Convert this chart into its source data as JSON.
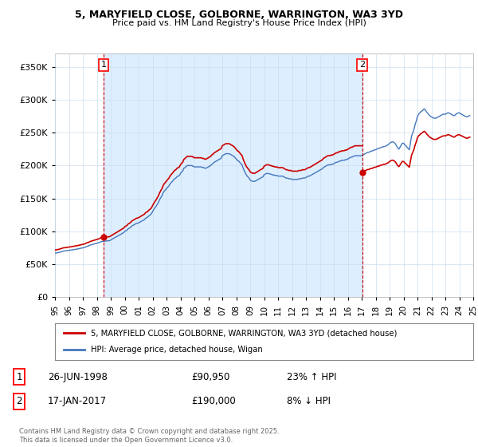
{
  "title1": "5, MARYFIELD CLOSE, GOLBORNE, WARRINGTON, WA3 3YD",
  "title2": "Price paid vs. HM Land Registry's House Price Index (HPI)",
  "legend_line1": "5, MARYFIELD CLOSE, GOLBORNE, WARRINGTON, WA3 3YD (detached house)",
  "legend_line2": "HPI: Average price, detached house, Wigan",
  "line1_color": "#cc0000",
  "line2_color": "#4477bb",
  "shade_color": "#ddeeff",
  "annotation1": {
    "num": "1",
    "date": "26-JUN-1998",
    "price": "£90,950",
    "pct": "23% ↑ HPI"
  },
  "annotation2": {
    "num": "2",
    "date": "17-JAN-2017",
    "price": "£190,000",
    "pct": "8% ↓ HPI"
  },
  "footer": "Contains HM Land Registry data © Crown copyright and database right 2025.\nThis data is licensed under the Open Government Licence v3.0.",
  "background_color": "#ffffff",
  "plot_bg_color": "#ffffff",
  "grid_color": "#ccddee",
  "ylim": [
    0,
    370000
  ],
  "yticks": [
    0,
    50000,
    100000,
    150000,
    200000,
    250000,
    300000,
    350000
  ],
  "hpi_data": {
    "dates": [
      1995.0,
      1995.08,
      1995.17,
      1995.25,
      1995.33,
      1995.42,
      1995.5,
      1995.58,
      1995.67,
      1995.75,
      1995.83,
      1995.92,
      1996.0,
      1996.08,
      1996.17,
      1996.25,
      1996.33,
      1996.42,
      1996.5,
      1996.58,
      1996.67,
      1996.75,
      1996.83,
      1996.92,
      1997.0,
      1997.08,
      1997.17,
      1997.25,
      1997.33,
      1997.42,
      1997.5,
      1997.58,
      1997.67,
      1997.75,
      1997.83,
      1997.92,
      1998.0,
      1998.08,
      1998.17,
      1998.25,
      1998.33,
      1998.42,
      1998.5,
      1998.58,
      1998.67,
      1998.75,
      1998.83,
      1998.92,
      1999.0,
      1999.08,
      1999.17,
      1999.25,
      1999.33,
      1999.42,
      1999.5,
      1999.58,
      1999.67,
      1999.75,
      1999.83,
      1999.92,
      2000.0,
      2000.08,
      2000.17,
      2000.25,
      2000.33,
      2000.42,
      2000.5,
      2000.58,
      2000.67,
      2000.75,
      2000.83,
      2000.92,
      2001.0,
      2001.08,
      2001.17,
      2001.25,
      2001.33,
      2001.42,
      2001.5,
      2001.58,
      2001.67,
      2001.75,
      2001.83,
      2001.92,
      2002.0,
      2002.08,
      2002.17,
      2002.25,
      2002.33,
      2002.42,
      2002.5,
      2002.58,
      2002.67,
      2002.75,
      2002.83,
      2002.92,
      2003.0,
      2003.08,
      2003.17,
      2003.25,
      2003.33,
      2003.42,
      2003.5,
      2003.58,
      2003.67,
      2003.75,
      2003.83,
      2003.92,
      2004.0,
      2004.08,
      2004.17,
      2004.25,
      2004.33,
      2004.42,
      2004.5,
      2004.58,
      2004.67,
      2004.75,
      2004.83,
      2004.92,
      2005.0,
      2005.08,
      2005.17,
      2005.25,
      2005.33,
      2005.42,
      2005.5,
      2005.58,
      2005.67,
      2005.75,
      2005.83,
      2005.92,
      2006.0,
      2006.08,
      2006.17,
      2006.25,
      2006.33,
      2006.42,
      2006.5,
      2006.58,
      2006.67,
      2006.75,
      2006.83,
      2006.92,
      2007.0,
      2007.08,
      2007.17,
      2007.25,
      2007.33,
      2007.42,
      2007.5,
      2007.58,
      2007.67,
      2007.75,
      2007.83,
      2007.92,
      2008.0,
      2008.08,
      2008.17,
      2008.25,
      2008.33,
      2008.42,
      2008.5,
      2008.58,
      2008.67,
      2008.75,
      2008.83,
      2008.92,
      2009.0,
      2009.08,
      2009.17,
      2009.25,
      2009.33,
      2009.42,
      2009.5,
      2009.58,
      2009.67,
      2009.75,
      2009.83,
      2009.92,
      2010.0,
      2010.08,
      2010.17,
      2010.25,
      2010.33,
      2010.42,
      2010.5,
      2010.58,
      2010.67,
      2010.75,
      2010.83,
      2010.92,
      2011.0,
      2011.08,
      2011.17,
      2011.25,
      2011.33,
      2011.42,
      2011.5,
      2011.58,
      2011.67,
      2011.75,
      2011.83,
      2011.92,
      2012.0,
      2012.08,
      2012.17,
      2012.25,
      2012.33,
      2012.42,
      2012.5,
      2012.58,
      2012.67,
      2012.75,
      2012.83,
      2012.92,
      2013.0,
      2013.08,
      2013.17,
      2013.25,
      2013.33,
      2013.42,
      2013.5,
      2013.58,
      2013.67,
      2013.75,
      2013.83,
      2013.92,
      2014.0,
      2014.08,
      2014.17,
      2014.25,
      2014.33,
      2014.42,
      2014.5,
      2014.58,
      2014.67,
      2014.75,
      2014.83,
      2014.92,
      2015.0,
      2015.08,
      2015.17,
      2015.25,
      2015.33,
      2015.42,
      2015.5,
      2015.58,
      2015.67,
      2015.75,
      2015.83,
      2015.92,
      2016.0,
      2016.08,
      2016.17,
      2016.25,
      2016.33,
      2016.42,
      2016.5,
      2016.58,
      2016.67,
      2016.75,
      2016.83,
      2016.92,
      2017.0,
      2017.08,
      2017.17,
      2017.25,
      2017.33,
      2017.42,
      2017.5,
      2017.58,
      2017.67,
      2017.75,
      2017.83,
      2017.92,
      2018.0,
      2018.08,
      2018.17,
      2018.25,
      2018.33,
      2018.42,
      2018.5,
      2018.58,
      2018.67,
      2018.75,
      2018.83,
      2018.92,
      2019.0,
      2019.08,
      2019.17,
      2019.25,
      2019.33,
      2019.42,
      2019.5,
      2019.58,
      2019.67,
      2019.75,
      2019.83,
      2019.92,
      2020.0,
      2020.08,
      2020.17,
      2020.25,
      2020.33,
      2020.42,
      2020.5,
      2020.58,
      2020.67,
      2020.75,
      2020.83,
      2020.92,
      2021.0,
      2021.08,
      2021.17,
      2021.25,
      2021.33,
      2021.42,
      2021.5,
      2021.58,
      2021.67,
      2021.75,
      2021.83,
      2021.92,
      2022.0,
      2022.08,
      2022.17,
      2022.25,
      2022.33,
      2022.42,
      2022.5,
      2022.58,
      2022.67,
      2022.75,
      2022.83,
      2022.92,
      2023.0,
      2023.08,
      2023.17,
      2023.25,
      2023.33,
      2023.42,
      2023.5,
      2023.58,
      2023.67,
      2023.75,
      2023.83,
      2023.92,
      2024.0,
      2024.08,
      2024.17,
      2024.25,
      2024.33,
      2024.42,
      2024.5,
      2024.58,
      2024.67,
      2024.75
    ],
    "values": [
      67000,
      67200,
      67500,
      68000,
      68300,
      69000,
      69500,
      70000,
      70200,
      70500,
      70800,
      71000,
      71200,
      71500,
      71800,
      72000,
      72300,
      72600,
      73000,
      73200,
      73500,
      74000,
      74300,
      74800,
      75000,
      75500,
      76000,
      77000,
      77500,
      78000,
      79000,
      79500,
      80000,
      80500,
      81000,
      81500,
      82000,
      82500,
      83000,
      84000,
      84500,
      85000,
      85000,
      85200,
      85500,
      85500,
      85800,
      86000,
      87000,
      88000,
      89000,
      90000,
      91000,
      92000,
      93000,
      94000,
      95000,
      96000,
      97000,
      98000,
      100000,
      101000,
      102000,
      104000,
      105000,
      106000,
      108000,
      109000,
      110000,
      111000,
      112000,
      112500,
      113000,
      114000,
      115000,
      116000,
      117000,
      118000,
      120000,
      121000,
      122000,
      124000,
      125000,
      127000,
      130000,
      133000,
      136000,
      138000,
      141000,
      144000,
      148000,
      151000,
      154000,
      158000,
      161000,
      163000,
      165000,
      167000,
      169000,
      172000,
      174000,
      176000,
      178000,
      180000,
      181000,
      183000,
      184000,
      185000,
      188000,
      190000,
      192000,
      196000,
      197000,
      199000,
      200000,
      200000,
      200000,
      200000,
      200000,
      199000,
      198000,
      198000,
      198000,
      198000,
      198000,
      198000,
      198000,
      197000,
      197000,
      196000,
      196000,
      197000,
      198000,
      199000,
      200000,
      202000,
      203000,
      205000,
      206000,
      207000,
      208000,
      209000,
      210000,
      211000,
      215000,
      216000,
      217000,
      218000,
      218000,
      218000,
      218000,
      217000,
      216000,
      215000,
      214000,
      212000,
      210000,
      208000,
      207000,
      205000,
      203000,
      201000,
      196000,
      192000,
      188000,
      185000,
      183000,
      181000,
      178000,
      177000,
      176000,
      176000,
      176000,
      177000,
      178000,
      179000,
      180000,
      181000,
      182000,
      183000,
      186000,
      187000,
      188000,
      188000,
      188000,
      187000,
      187000,
      186000,
      186000,
      185000,
      185000,
      185000,
      184000,
      184000,
      184000,
      184000,
      184000,
      183000,
      182000,
      181000,
      181000,
      180000,
      180000,
      180000,
      179000,
      179000,
      179000,
      179000,
      179000,
      179000,
      180000,
      180000,
      180000,
      181000,
      181000,
      181000,
      182000,
      183000,
      184000,
      184000,
      185000,
      186000,
      187000,
      188000,
      189000,
      190000,
      191000,
      192000,
      193000,
      194000,
      195000,
      197000,
      198000,
      199000,
      200000,
      201000,
      201000,
      201000,
      202000,
      202000,
      203000,
      204000,
      205000,
      205000,
      206000,
      207000,
      207000,
      208000,
      208000,
      208000,
      209000,
      209000,
      210000,
      211000,
      212000,
      213000,
      213000,
      214000,
      215000,
      215000,
      215000,
      215000,
      215000,
      215000,
      215000,
      216000,
      217000,
      218000,
      219000,
      220000,
      220000,
      221000,
      222000,
      222000,
      223000,
      224000,
      224000,
      225000,
      226000,
      226000,
      227000,
      228000,
      228000,
      229000,
      229000,
      230000,
      231000,
      232000,
      234000,
      235000,
      236000,
      236000,
      235000,
      233000,
      230000,
      227000,
      225000,
      228000,
      231000,
      234000,
      234000,
      232000,
      230000,
      228000,
      226000,
      224000,
      235000,
      245000,
      250000,
      255000,
      262000,
      268000,
      275000,
      278000,
      280000,
      282000,
      283000,
      285000,
      286000,
      284000,
      281000,
      279000,
      277000,
      275000,
      274000,
      273000,
      272000,
      272000,
      272000,
      273000,
      274000,
      275000,
      276000,
      277000,
      278000,
      278000,
      278000,
      279000,
      280000,
      280000,
      279000,
      278000,
      277000,
      276000,
      276000,
      278000,
      279000,
      280000,
      280000,
      279000,
      278000,
      277000,
      276000,
      275000,
      274000,
      274000,
      275000,
      276000
    ]
  },
  "sale1": {
    "date": 1998.49,
    "value": 90950,
    "ratio": 1.23
  },
  "sale2": {
    "date": 2017.04,
    "value": 190000,
    "ratio": 0.92
  },
  "xmin": 1995,
  "xmax": 2025
}
